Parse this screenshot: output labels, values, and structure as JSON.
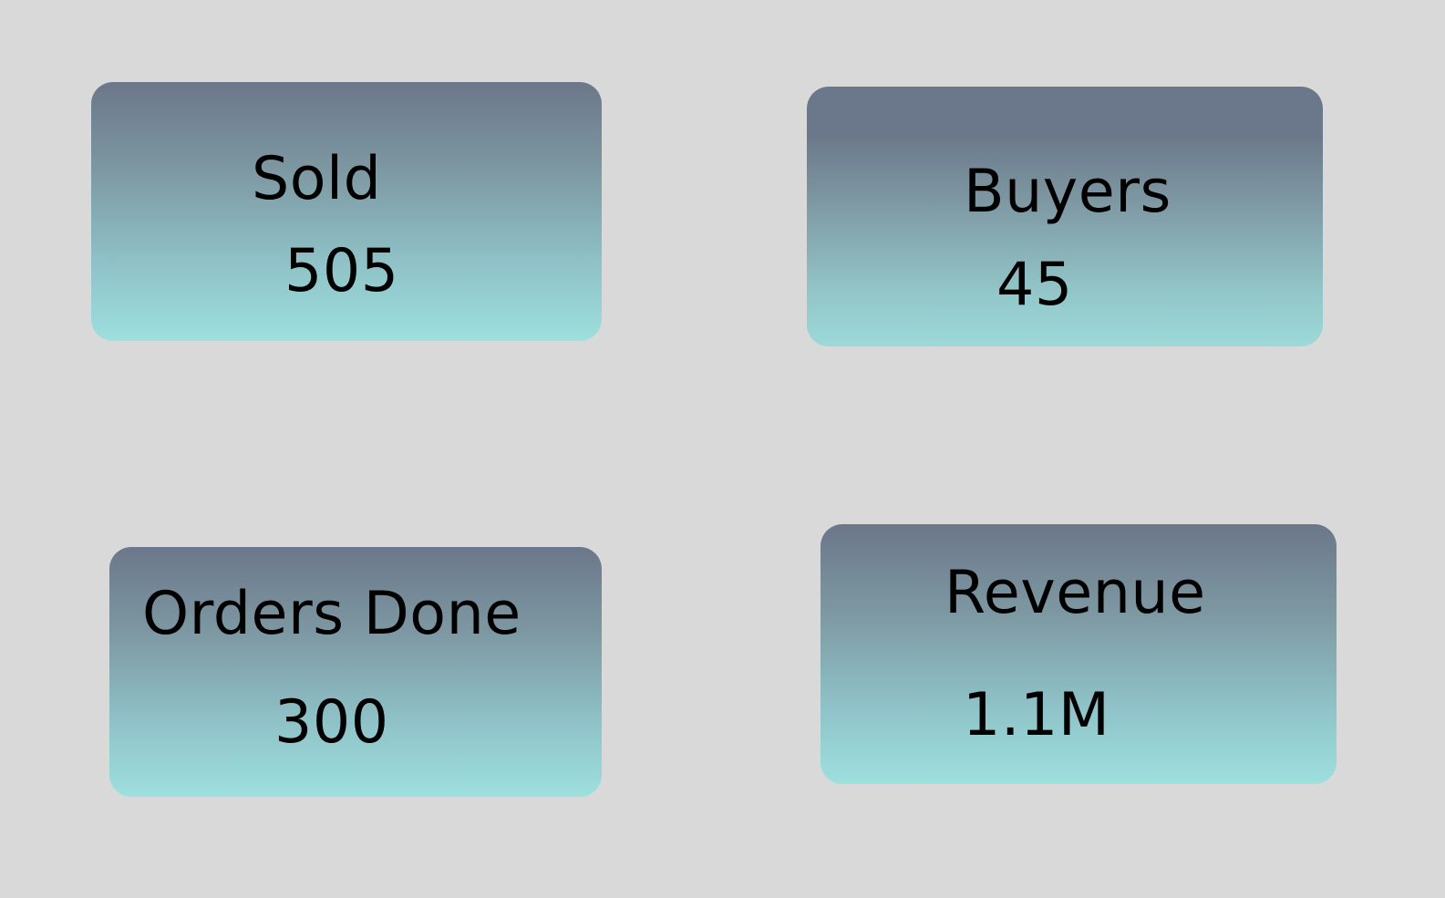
{
  "stats": {
    "sold": {
      "label": "Sold",
      "value": "505"
    },
    "buyers": {
      "label": "Buyers",
      "value": "45"
    },
    "orders_done": {
      "label": "Orders Done",
      "value": "300"
    },
    "revenue": {
      "label": "Revenue",
      "value": "1.1M"
    }
  },
  "colors": {
    "background": "#d9d9d9",
    "card_gradient_top": "#6b778a",
    "card_gradient_bottom": "#9de0de",
    "text": "#000000"
  }
}
